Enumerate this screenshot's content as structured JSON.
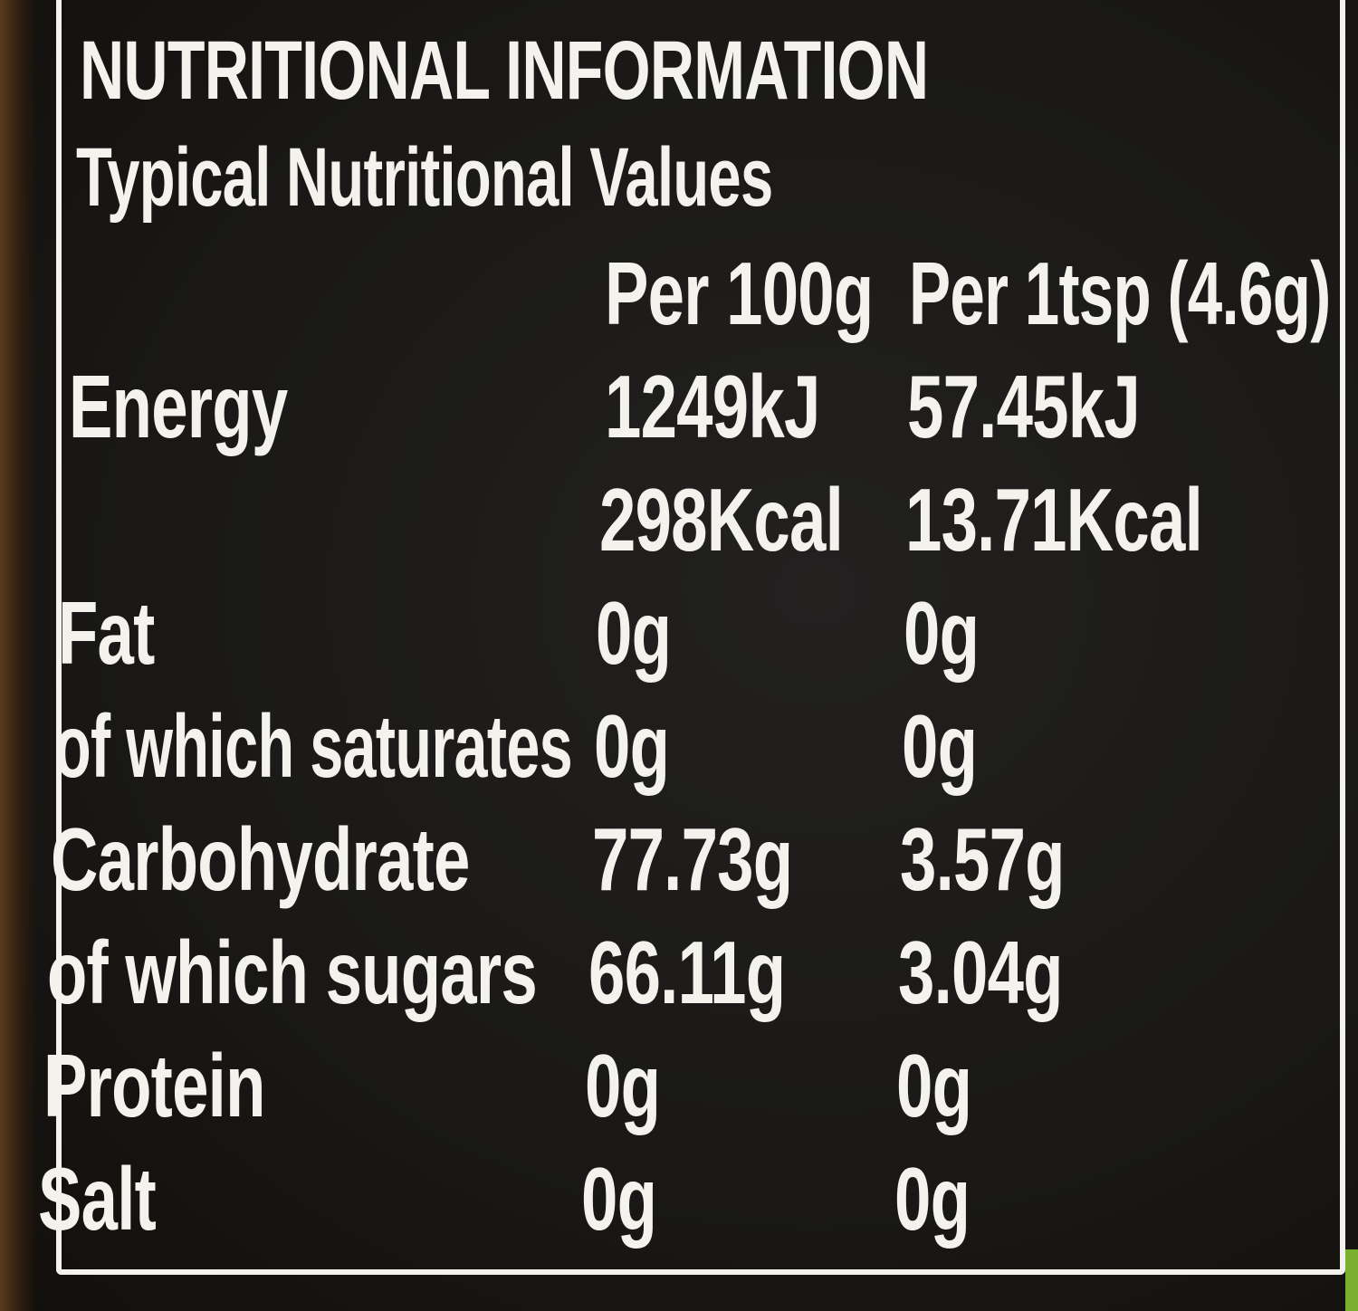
{
  "title": "NUTRITIONAL INFORMATION",
  "subtitle": "Typical Nutritional Values",
  "columns": [
    "Per 100g",
    "Per 1tsp (4.6g)"
  ],
  "rows": [
    {
      "label": "Energy",
      "per100g": "1249kJ",
      "perServing": "57.45kJ"
    },
    {
      "label": "",
      "per100g": "298Kcal",
      "perServing": "13.71Kcal"
    },
    {
      "label": "Fat",
      "per100g": "0g",
      "perServing": "0g"
    },
    {
      "label": "of which saturates",
      "per100g": "0g",
      "perServing": "0g"
    },
    {
      "label": "Carbohydrate",
      "per100g": "77.73g",
      "perServing": "3.57g"
    },
    {
      "label": "of which sugars",
      "per100g": "66.11g",
      "perServing": "3.04g"
    },
    {
      "label": "Protein",
      "per100g": "0g",
      "perServing": "0g"
    },
    {
      "label": "Salt",
      "per100g": "0g",
      "perServing": "0g"
    }
  ]
}
